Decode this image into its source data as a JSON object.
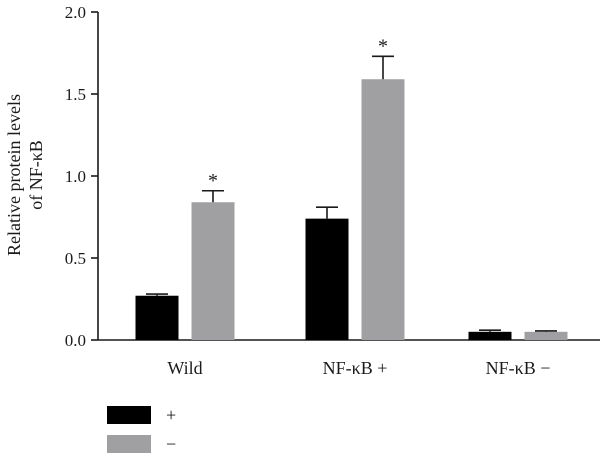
{
  "chart_data": {
    "type": "bar",
    "ylabel_lines": [
      "Relative protein levels",
      "of NF-κB"
    ],
    "categories": [
      "Wild",
      "NF-κB +",
      "NF-κB −"
    ],
    "ylim": [
      0,
      2.0
    ],
    "yticks": [
      "0.0",
      "0.5",
      "1.0",
      "1.5",
      "2.0"
    ],
    "legend_position": "bottom-left",
    "grid": false,
    "series": [
      {
        "name": "+",
        "color": "#000000",
        "values": [
          0.27,
          0.74,
          0.05
        ],
        "errors": [
          0.01,
          0.07,
          0.01
        ],
        "significance": [
          "",
          "",
          ""
        ]
      },
      {
        "name": "−",
        "color": "#a0a0a2",
        "values": [
          0.84,
          1.59,
          0.05
        ],
        "errors": [
          0.07,
          0.14,
          0.005
        ],
        "significance": [
          "*",
          "*",
          ""
        ]
      }
    ]
  }
}
